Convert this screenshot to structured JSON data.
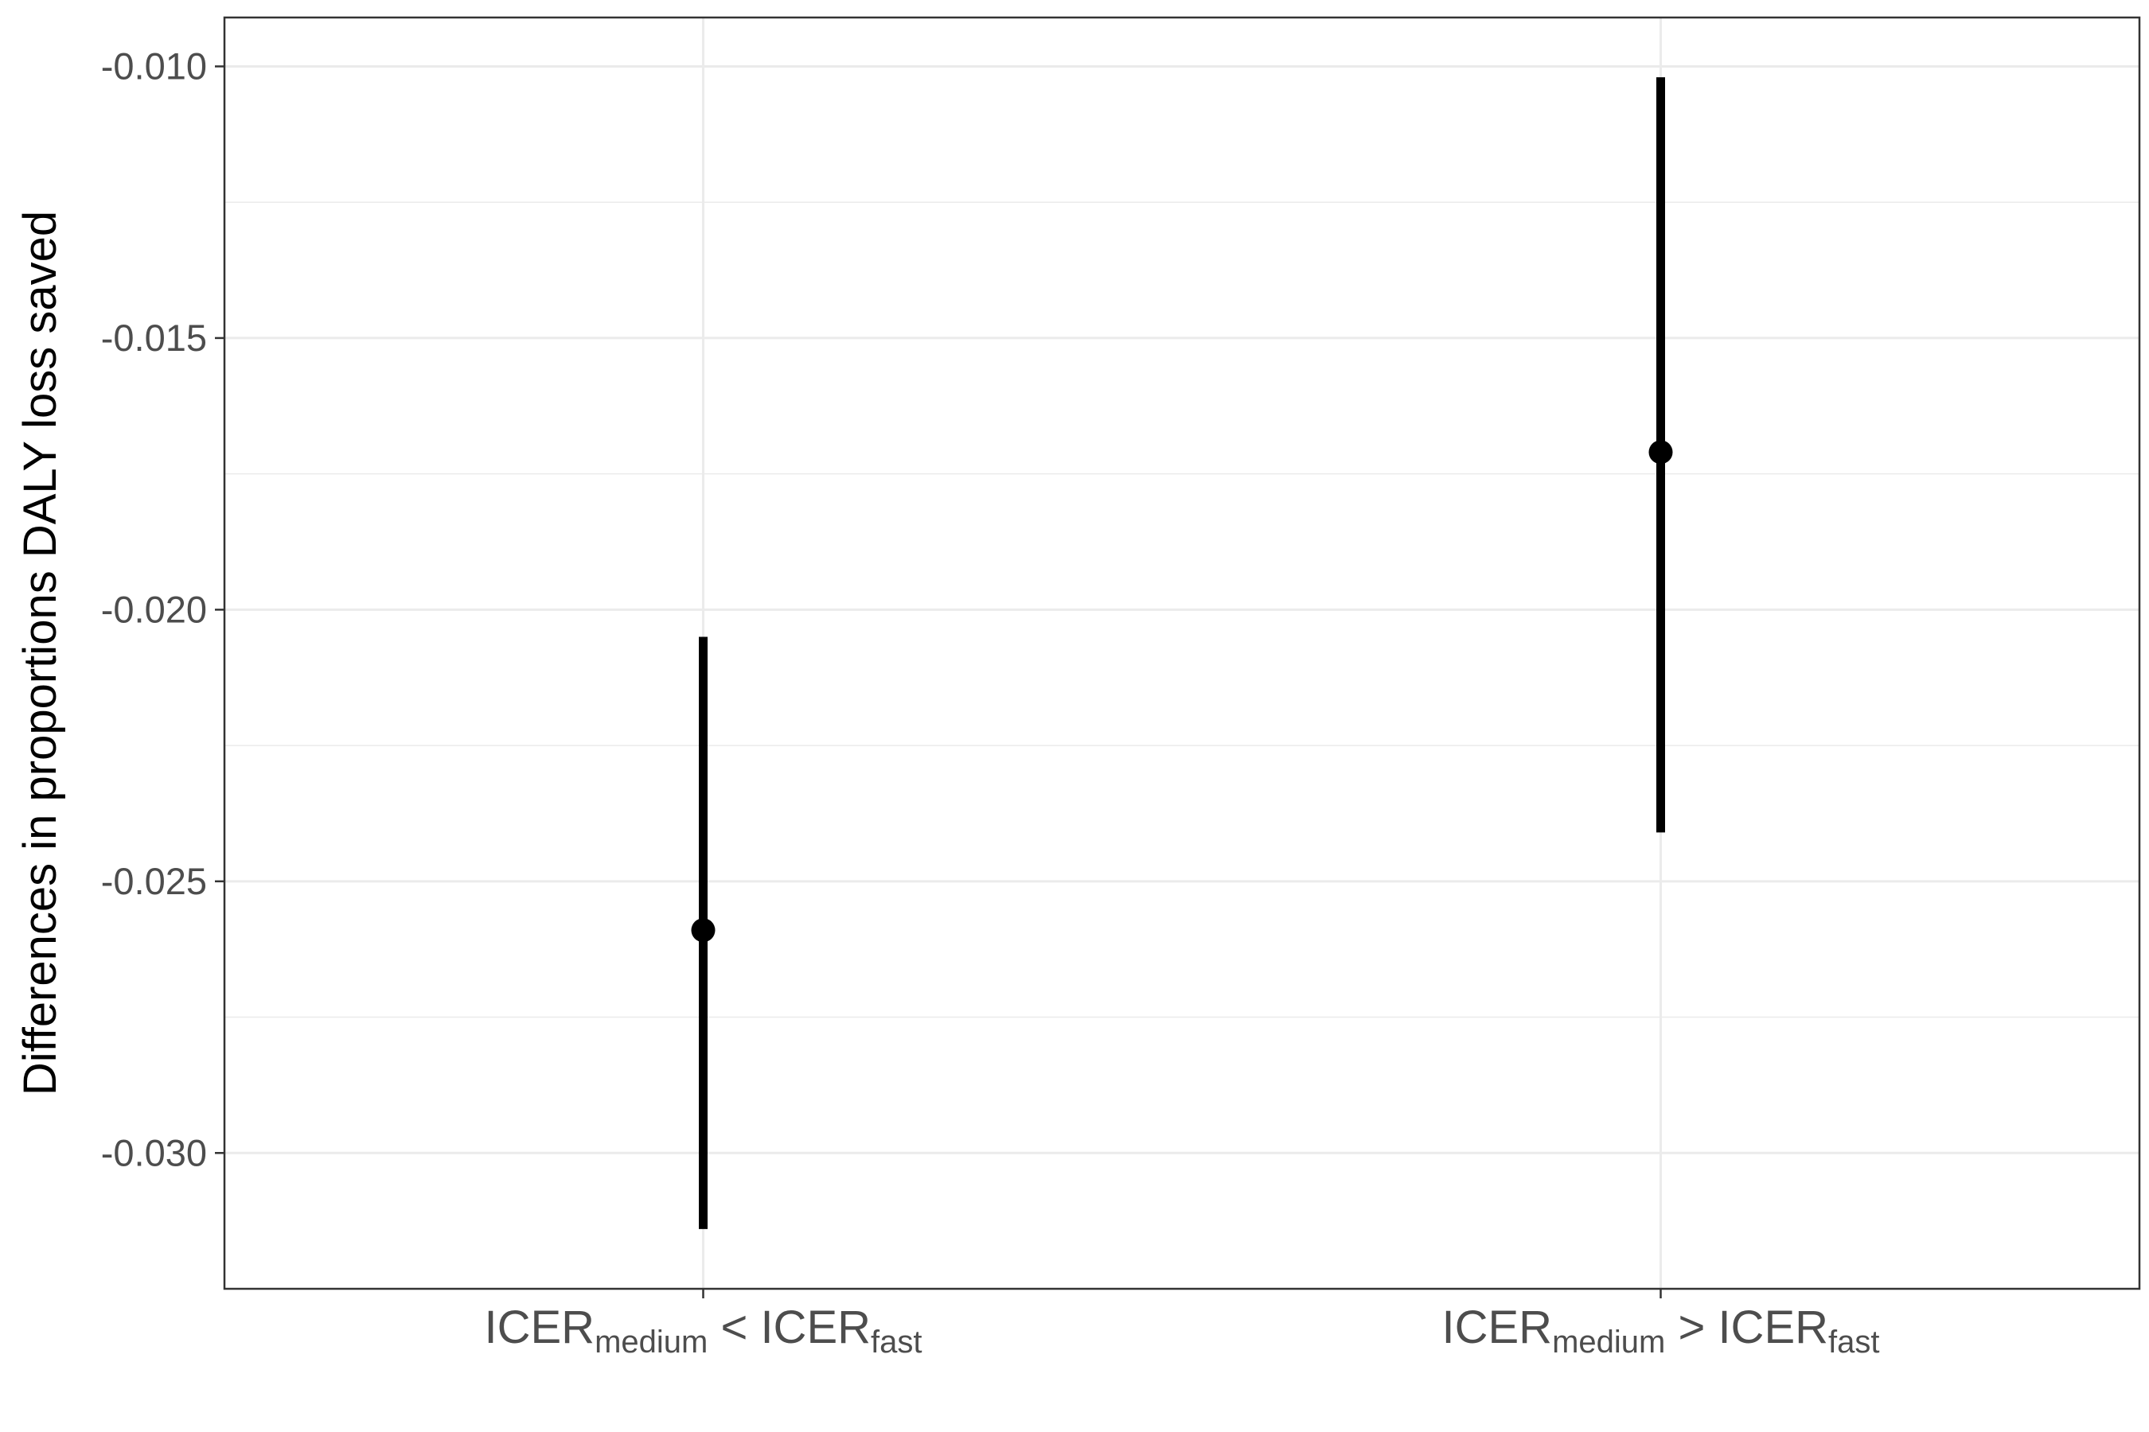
{
  "chart_data": {
    "type": "pointrange",
    "ylabel": "Differences in proportions DALY loss saved",
    "xlabel": "",
    "ylim": [
      -0.0325,
      -0.0091
    ],
    "yticks": [
      -0.03,
      -0.025,
      -0.02,
      -0.015,
      -0.01
    ],
    "ytick_labels": [
      "-0.030",
      "-0.025",
      "-0.020",
      "-0.015",
      "-0.010"
    ],
    "grid": true,
    "categories": [
      {
        "main": "ICER",
        "sub1": "medium",
        "op": "<",
        "main2": "ICER",
        "sub2": "fast"
      },
      {
        "main": "ICER",
        "sub1": "medium",
        "op": ">",
        "main2": "ICER",
        "sub2": "fast"
      }
    ],
    "points": [
      {
        "estimate": -0.0259,
        "lower": -0.0314,
        "upper": -0.0205
      },
      {
        "estimate": -0.0171,
        "lower": -0.0241,
        "upper": -0.0102
      }
    ],
    "colors": {
      "mark": "#000000",
      "grid": "#ebebeb",
      "panel_border": "#333333"
    }
  }
}
